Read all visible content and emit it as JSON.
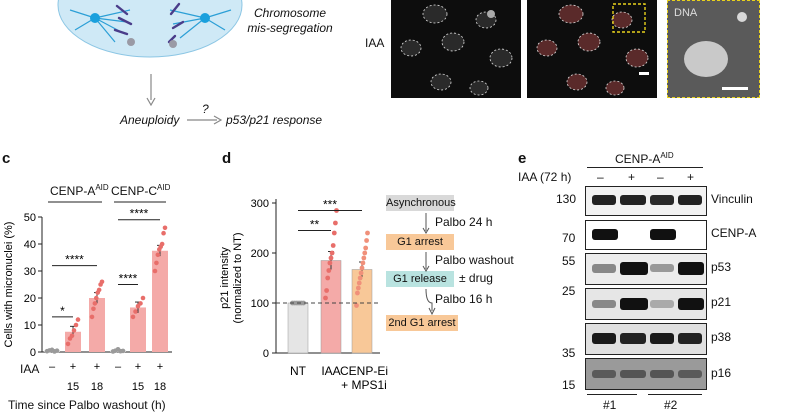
{
  "top": {
    "diagram": {
      "chromosome_text_line1": "Chromosome",
      "chromosome_text_line2": "mis-segregation",
      "aneuploidy": "Aneuploidy",
      "question_mark": "?",
      "p53_response": "p53/p21 response"
    },
    "micrographs": {
      "row_label": "IAA",
      "dna_label": "DNA"
    }
  },
  "panel_c": {
    "letter": "c",
    "group1_label": "CENP-A",
    "group1_sup": "AID",
    "group2_label": "CENP-C",
    "group2_sup": "AID",
    "iaa_label": "IAA",
    "iaa_signs": [
      "–",
      "+",
      "+",
      "–",
      "+",
      "+"
    ],
    "time_ticks": [
      "15",
      "18",
      "15",
      "18"
    ],
    "xlabel": "Time since Palbo washout (h)",
    "sig": [
      "*",
      "****",
      "****",
      "****"
    ]
  },
  "panel_d": {
    "letter": "d",
    "sig": [
      "***",
      "**"
    ],
    "flow_steps": [
      "Asynchronous",
      "Palbo 24 h",
      "G1 arrest",
      "Palbo washout",
      "G1 release",
      "± drug",
      "Palbo 16 h",
      "2nd G1 arrest"
    ]
  },
  "panel_e": {
    "letter": "e",
    "header": "CENP-A",
    "header_sup": "AID",
    "iaa_label": "IAA (72 h)",
    "iaa_signs": [
      "–",
      "+",
      "–",
      "+"
    ],
    "bottom_labels": [
      "#1",
      "#2"
    ],
    "rows": [
      {
        "name": "Vinculin",
        "mw": "130"
      },
      {
        "name": "CENP-A",
        "mw": "70"
      },
      {
        "name": "p53",
        "mw": "55"
      },
      {
        "name": "p21",
        "mw": "25"
      },
      {
        "name": "p38",
        "mw": "35"
      },
      {
        "name": "p16",
        "mw": "15"
      }
    ]
  },
  "chart_data": [
    {
      "type": "bar",
      "title": "",
      "ylabel": "Cells with micronuclei (%)",
      "xlabel": "Time since Palbo washout (h)",
      "ylim": [
        0,
        50
      ],
      "yticks": [
        "0",
        "10",
        "20",
        "30",
        "40",
        "50"
      ],
      "categories": [
        "CENP-A –",
        "CENP-A + 15",
        "CENP-A + 18",
        "CENP-C –",
        "CENP-C + 15",
        "CENP-C + 18"
      ],
      "values": [
        0.5,
        7.5,
        20,
        0.5,
        16.5,
        37.5
      ],
      "errors": [
        0.3,
        2,
        2,
        0.3,
        2,
        2
      ],
      "points": [
        [
          0.3,
          0.6,
          0.8,
          0.2,
          0.5
        ],
        [
          3,
          5,
          6,
          8,
          10,
          12
        ],
        [
          13,
          16,
          18,
          20,
          22,
          23,
          25,
          26
        ],
        [
          0.2,
          0.5,
          1.0,
          0.3,
          0.4
        ],
        [
          13,
          15,
          17,
          18,
          20
        ],
        [
          30,
          33,
          36,
          38,
          39,
          40,
          44,
          46
        ]
      ],
      "bar_colors": [
        "#d9d9d9",
        "#f4aaa8",
        "#f4aaa8",
        "#d9d9d9",
        "#f4aaa8",
        "#f4aaa8"
      ],
      "point_colors": [
        "#9a9a9a",
        "#e86e6a",
        "#e86e6a",
        "#9a9a9a",
        "#e86e6a",
        "#e86e6a"
      ]
    },
    {
      "type": "bar",
      "title": "",
      "ylabel": "p21 intensity (normalized to NT)",
      "ylim": [
        0,
        300
      ],
      "yticks": [
        "0",
        "100",
        "200",
        "300"
      ],
      "categories": [
        "NT",
        "IAA",
        "CENP-Ei + MPS1i"
      ],
      "values": [
        100,
        185,
        167
      ],
      "errors": [
        1,
        18,
        15
      ],
      "reference_line": 100,
      "points": [
        [
          100,
          100,
          100,
          100,
          100,
          100
        ],
        [
          110,
          125,
          150,
          165,
          180,
          190,
          200,
          215,
          240,
          260,
          285
        ],
        [
          95,
          120,
          130,
          140,
          150,
          160,
          170,
          180,
          190,
          200,
          210,
          225,
          240
        ]
      ],
      "bar_colors": [
        "#e5e5e5",
        "#f4aaa8",
        "#f8c898"
      ],
      "point_colors": [
        "#9a9a9a",
        "#e86e6a",
        "#f0907a"
      ]
    }
  ]
}
